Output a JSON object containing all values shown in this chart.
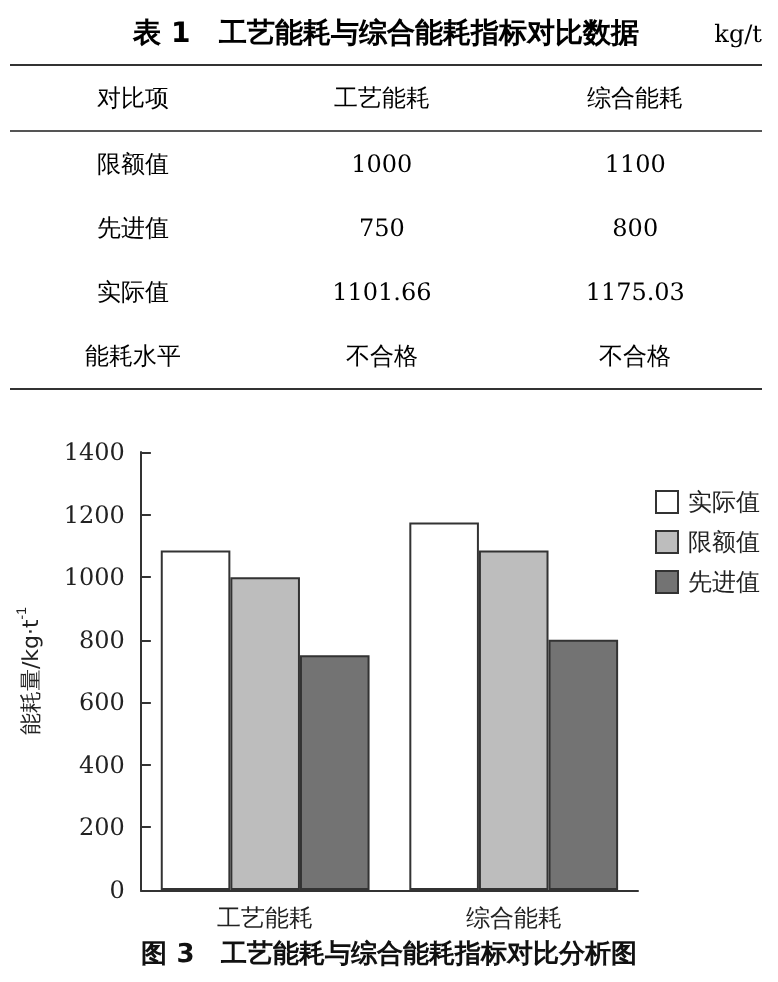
{
  "chart_data": [
    {
      "type": "other",
      "title": "表 1　工艺能耗与综合能耗指标对比数据",
      "annotations": [
        "kg/t",
        "对比项",
        "工艺能耗",
        "综合能耗",
        "限额值",
        "1000",
        "1100",
        "先进值",
        "750",
        "800",
        "实际值",
        "1101.66",
        "1175.03",
        "能耗水平",
        "不合格",
        "不合格"
      ]
    },
    {
      "type": "bar",
      "title": "图 3　工艺能耗与综合能耗指标对比分析图",
      "ylabel": "能耗量/kg·t$^{-1}$",
      "categories": [
        "工艺能耗",
        "综合能耗"
      ],
      "series": [
        {
          "name": "实际值",
          "color": "#ffffff",
          "values": [
            1085,
            1175
          ]
        },
        {
          "name": "限额值",
          "color": "#bdbdbd",
          "values": [
            1000,
            1085
          ]
        },
        {
          "name": "先进值",
          "color": "#737373",
          "values": [
            750,
            800
          ]
        }
      ],
      "ylim": [
        0,
        1400
      ],
      "yticks": [
        0,
        200,
        400,
        600,
        800,
        1000,
        1200,
        1400
      ],
      "grid": false,
      "legend": "top right"
    }
  ]
}
